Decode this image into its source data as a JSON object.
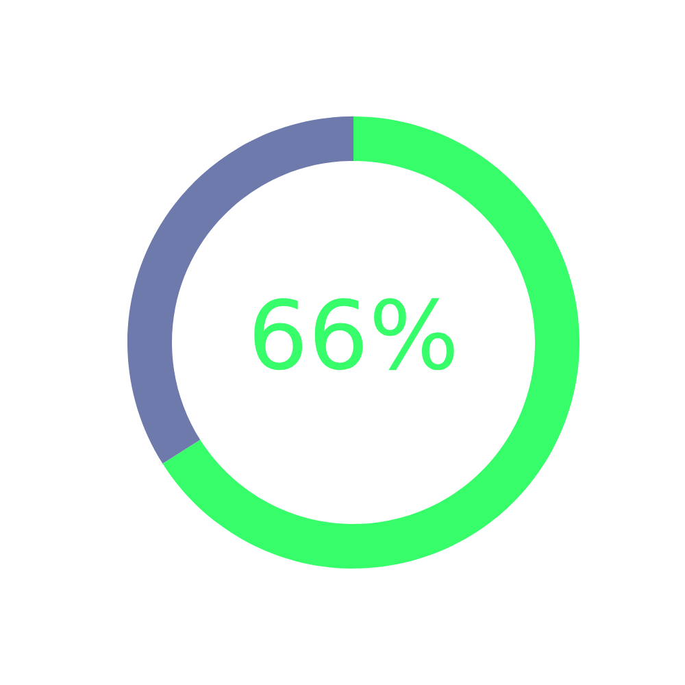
{
  "chart_data": {
    "type": "donut",
    "categories": [
      null,
      null
    ],
    "values": [
      66,
      34
    ],
    "colors": [
      "#38fd6b",
      "#6e7aab"
    ],
    "value_labels": [
      "66%",
      null
    ]
  }
}
